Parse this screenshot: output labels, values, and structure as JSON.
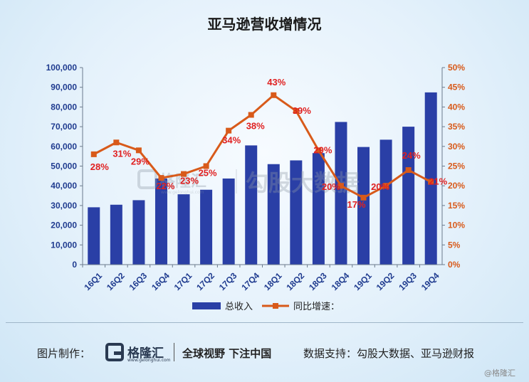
{
  "title": "亚马逊营收增情况",
  "chart_data": {
    "type": "bar+line",
    "categories": [
      "16Q1",
      "16Q2",
      "16Q3",
      "16Q4",
      "17Q1",
      "17Q2",
      "17Q3",
      "17Q4",
      "18Q1",
      "18Q2",
      "18Q3",
      "18Q4",
      "19Q1",
      "19Q2",
      "19Q3",
      "19Q4"
    ],
    "series": [
      {
        "name": "总收入",
        "type": "bar",
        "axis": "left",
        "color": "#2a3fa6",
        "values": [
          29100,
          30400,
          32700,
          43700,
          35700,
          38000,
          43700,
          60500,
          51000,
          52900,
          56600,
          72400,
          59700,
          63400,
          70000,
          87400
        ]
      },
      {
        "name": "同比增速：",
        "type": "line",
        "axis": "right",
        "color": "#d85a1a",
        "values": [
          28,
          31,
          29,
          22,
          23,
          25,
          34,
          38,
          43,
          39,
          29,
          20,
          17,
          20,
          24,
          21
        ],
        "labels": [
          "28%",
          "31%",
          "29%",
          "22%",
          "23%",
          "25%",
          "34%",
          "38%",
          "43%",
          "39%",
          "29%",
          "20%",
          "17%",
          "20%",
          "24%",
          "21%"
        ]
      }
    ],
    "left_axis": {
      "min": 0,
      "max": 100000,
      "ticks": [
        "0",
        "10,000",
        "20,000",
        "30,000",
        "40,000",
        "50,000",
        "60,000",
        "70,000",
        "80,000",
        "90,000",
        "100,000"
      ],
      "color": "#1f3b8f"
    },
    "right_axis": {
      "min": 0,
      "max": 50,
      "ticks": [
        "0%",
        "5%",
        "10%",
        "15%",
        "20%",
        "25%",
        "30%",
        "35%",
        "40%",
        "45%",
        "50%"
      ],
      "color": "#d85a1a"
    },
    "label_color": "#e02020",
    "legend_position": "bottom",
    "grid": false
  },
  "watermark": {
    "brand": "格隆汇",
    "url": "www.gelonghui.com",
    "text": "勾股大数据"
  },
  "footer": {
    "made_by_label": "图片制作：",
    "logo_name": "格隆汇",
    "logo_url": "www.gelonghui.com",
    "slogan": "全球视野 下注中国",
    "source": "数据支持：勾股大数据、亚马逊财报",
    "handle": "@格隆汇"
  }
}
